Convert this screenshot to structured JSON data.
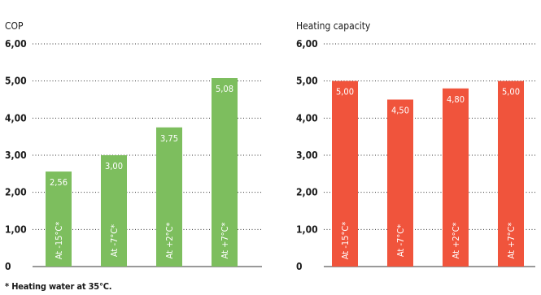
{
  "chart_data": [
    {
      "type": "bar",
      "title": "COP",
      "categories": [
        "At -15°C*",
        "At -7°C*",
        "At +2°C*",
        "At +7°C*"
      ],
      "values": [
        2.56,
        3.0,
        3.75,
        5.08
      ],
      "value_labels": [
        "2,56",
        "3,00",
        "3,75",
        "5,08"
      ],
      "ylim": [
        0,
        6
      ],
      "yticks": [
        "0",
        "1,00",
        "2,00",
        "3,00",
        "4,00",
        "5,00",
        "6,00"
      ],
      "grid": "dotted horizontal",
      "color": "#7dbe5e"
    },
    {
      "type": "bar",
      "title": "Heating capacity",
      "categories": [
        "At -15°C*",
        "At -7°C*",
        "At +2°C*",
        "At +7°C*"
      ],
      "values": [
        5.0,
        4.5,
        4.8,
        5.0
      ],
      "value_labels": [
        "5,00",
        "4,50",
        "4,80",
        "5,00"
      ],
      "ylim": [
        0,
        6
      ],
      "yticks": [
        "0",
        "1,00",
        "2,00",
        "3,00",
        "4,00",
        "5,00",
        "6,00"
      ],
      "grid": "dotted horizontal",
      "color": "#f0543c"
    }
  ],
  "footnote": "* Heating water at 35°C."
}
